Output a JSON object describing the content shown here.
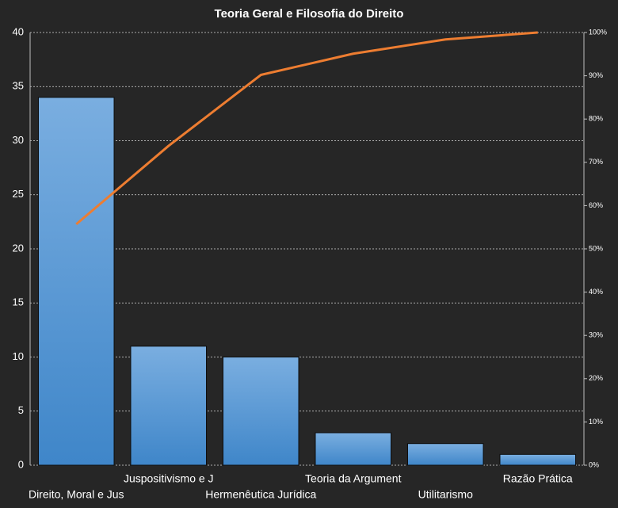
{
  "chart_data": {
    "type": "pareto",
    "title": "Teoria Geral  e Filosofia  do Direito",
    "categories": [
      "Direito, Moral e Jus",
      "Juspositivismo e J",
      "Hermenêutica Jurídica",
      "Teoria da Argument",
      "Utilitarismo",
      "Razão Prática"
    ],
    "series": [
      {
        "type": "bar",
        "color": "#5b9bd5",
        "values": [
          34,
          11,
          10,
          3,
          2,
          1
        ]
      },
      {
        "type": "line",
        "color": "#ed7d31",
        "axis": "y2",
        "values": [
          55.7,
          73.8,
          90.2,
          95.1,
          98.4,
          100
        ]
      }
    ],
    "ylim": [
      0,
      40
    ],
    "yticks": [
      0,
      5,
      10,
      15,
      20,
      25,
      30,
      35,
      40
    ],
    "y2lim": [
      0,
      100
    ],
    "y2ticks": [
      {
        "value": 0,
        "label": "0%"
      },
      {
        "value": 10,
        "label": "10%"
      },
      {
        "value": 20,
        "label": "20%"
      },
      {
        "value": 30,
        "label": "30%"
      },
      {
        "value": 40,
        "label": "40%"
      },
      {
        "value": 50,
        "label": "50%"
      },
      {
        "value": 60,
        "label": "60%"
      },
      {
        "value": 70,
        "label": "70%"
      },
      {
        "value": 80,
        "label": "80%"
      },
      {
        "value": 90,
        "label": "90%"
      },
      {
        "value": 100,
        "label": "100%"
      }
    ],
    "grid": true
  }
}
